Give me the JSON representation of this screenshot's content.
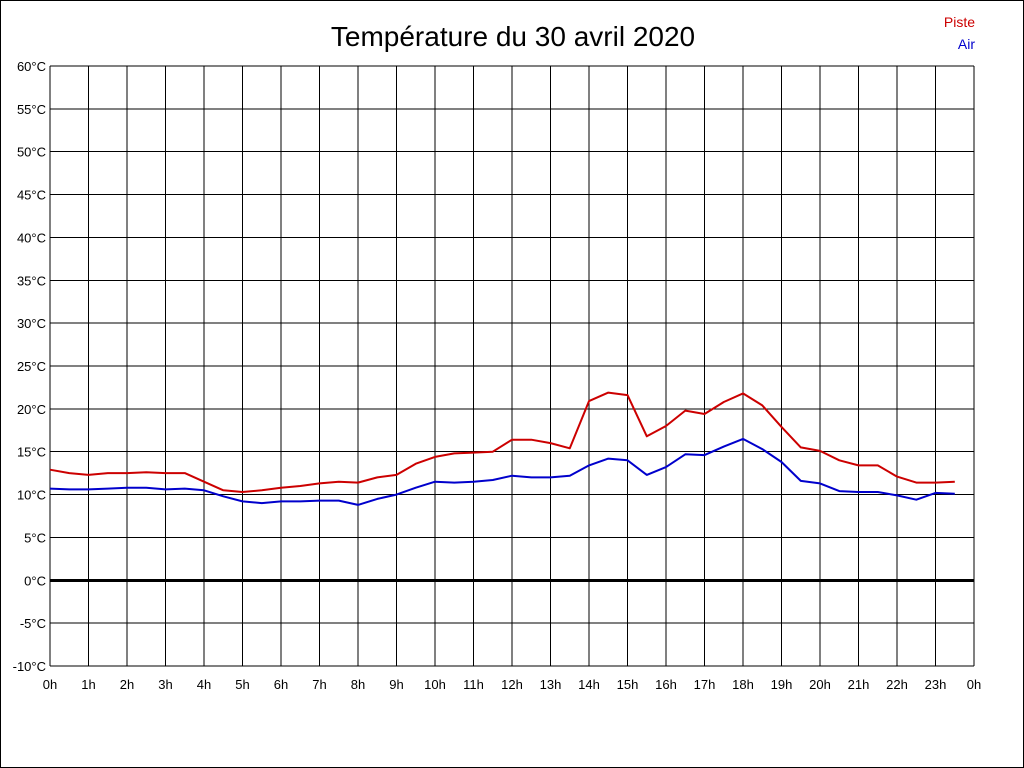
{
  "chart_data": {
    "type": "line",
    "title": "Température du 30 avril 2020",
    "xlabel": "",
    "ylabel": "",
    "x_tick_labels": [
      "0h",
      "1h",
      "2h",
      "3h",
      "4h",
      "5h",
      "6h",
      "7h",
      "8h",
      "9h",
      "10h",
      "11h",
      "12h",
      "13h",
      "14h",
      "15h",
      "16h",
      "17h",
      "18h",
      "19h",
      "20h",
      "21h",
      "22h",
      "23h",
      "0h"
    ],
    "y_ticks": [
      -10,
      -5,
      0,
      5,
      10,
      15,
      20,
      25,
      30,
      35,
      40,
      45,
      50,
      55,
      60
    ],
    "y_tick_suffix": "°C",
    "xlim": [
      0,
      24
    ],
    "ylim": [
      -10,
      60
    ],
    "grid": true,
    "zero_line": true,
    "legend_position": "top-right",
    "series": [
      {
        "name": "Piste",
        "color": "#cc0000",
        "x": [
          0,
          0.5,
          1,
          1.5,
          2,
          2.5,
          3,
          3.5,
          4,
          4.5,
          5,
          5.5,
          6,
          6.5,
          7,
          7.5,
          8,
          8.5,
          9,
          9.5,
          10,
          10.5,
          11,
          11.5,
          12,
          12.5,
          13,
          13.5,
          14,
          14.5,
          15,
          15.5,
          16,
          16.5,
          17,
          17.5,
          18,
          18.5,
          19,
          19.5,
          20,
          20.5,
          21,
          21.5,
          22,
          22.5,
          23,
          23.5
        ],
        "values": [
          12.9,
          12.5,
          12.3,
          12.5,
          12.5,
          12.6,
          12.5,
          12.5,
          11.5,
          10.5,
          10.3,
          10.5,
          10.8,
          11,
          11.3,
          11.5,
          11.4,
          12,
          12.3,
          13.6,
          14.4,
          14.8,
          14.9,
          15,
          16.4,
          16.4,
          16,
          15.4,
          20.9,
          21.9,
          21.6,
          16.8,
          18,
          19.8,
          19.4,
          20.8,
          21.8,
          20.4,
          17.9,
          15.5,
          15.1,
          14,
          13.4,
          13.4,
          12.1,
          11.4,
          11.4,
          11.5
        ]
      },
      {
        "name": "Air",
        "color": "#0000cc",
        "x": [
          0,
          0.5,
          1,
          1.5,
          2,
          2.5,
          3,
          3.5,
          4,
          4.5,
          5,
          5.5,
          6,
          6.5,
          7,
          7.5,
          8,
          8.5,
          9,
          9.5,
          10,
          10.5,
          11,
          11.5,
          12,
          12.5,
          13,
          13.5,
          14,
          14.5,
          15,
          15.5,
          16,
          16.5,
          17,
          17.5,
          18,
          18.5,
          19,
          19.5,
          20,
          20.5,
          21,
          21.5,
          22,
          22.5,
          23,
          23.5
        ],
        "values": [
          10.7,
          10.6,
          10.6,
          10.7,
          10.8,
          10.8,
          10.6,
          10.7,
          10.5,
          9.8,
          9.2,
          9,
          9.2,
          9.2,
          9.3,
          9.3,
          8.8,
          9.5,
          10,
          10.8,
          11.5,
          11.4,
          11.5,
          11.7,
          12.2,
          12,
          12,
          12.2,
          13.4,
          14.2,
          14,
          12.3,
          13.2,
          14.7,
          14.6,
          15.6,
          16.5,
          15.3,
          13.8,
          11.6,
          11.3,
          10.4,
          10.3,
          10.3,
          9.9,
          9.4,
          10.2,
          10.1
        ]
      }
    ]
  },
  "colors": {
    "background": "#ffffff",
    "grid": "#000000",
    "zero_line": "#000000"
  }
}
